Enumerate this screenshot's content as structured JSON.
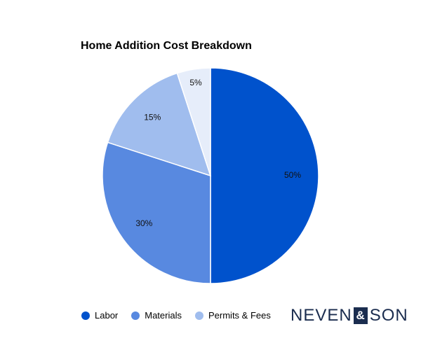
{
  "chart_data": {
    "type": "pie",
    "title": "Home Addition Cost Breakdown",
    "categories": [
      "Labor",
      "Materials",
      "Permits & Fees",
      ""
    ],
    "values": [
      50,
      30,
      15,
      5
    ],
    "value_labels": [
      "50%",
      "30%",
      "15%",
      "5%"
    ],
    "colors": [
      "#0052cc",
      "#5889e0",
      "#a0bdee",
      "#e6edfa"
    ],
    "legend_position": "bottom-left",
    "legend": [
      {
        "label": "Labor",
        "color": "#0052cc"
      },
      {
        "label": "Materials",
        "color": "#5889e0"
      },
      {
        "label": "Permits & Fees",
        "color": "#a0bdee"
      }
    ]
  },
  "brand": {
    "left": "NEVEN",
    "mark": "&",
    "right": "SON"
  }
}
